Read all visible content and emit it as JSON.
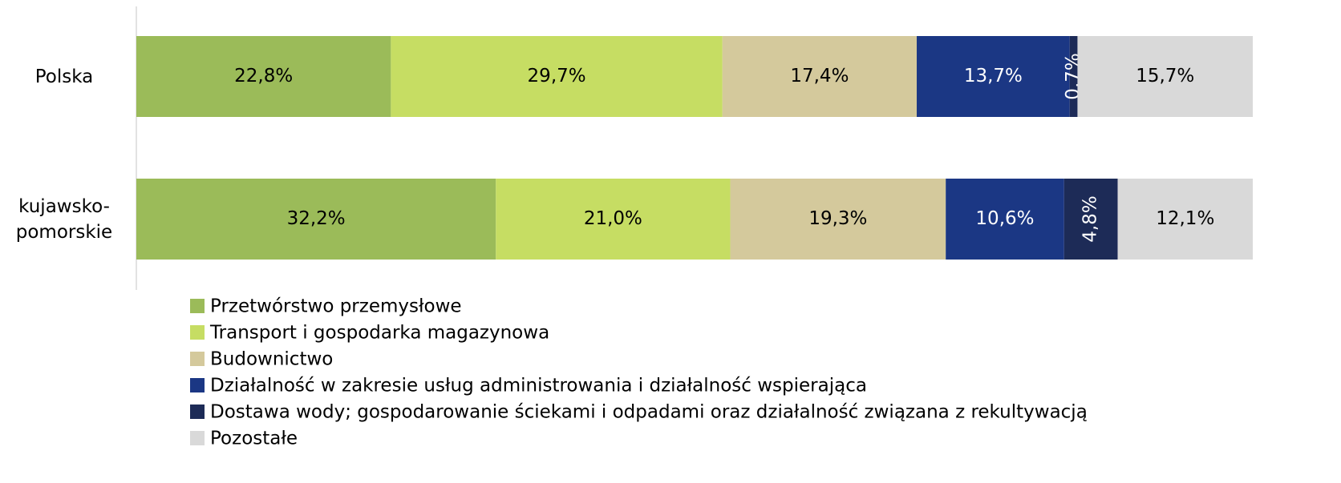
{
  "chart_data": {
    "type": "stacked_bar_horizontal",
    "categories": [
      "Polska",
      "kujawsko-pomorskie"
    ],
    "xlim": [
      0,
      100
    ],
    "series": [
      {
        "name": "Przetwórstwo przemysłowe",
        "color": "#9bbb59",
        "values": [
          22.8,
          32.2
        ],
        "value_labels": [
          "22,8%",
          "32,2%"
        ]
      },
      {
        "name": "Transport i gospodarka magazynowa",
        "color": "#c6dd63",
        "values": [
          29.7,
          21.0
        ],
        "value_labels": [
          "29,7%",
          "21,0%"
        ]
      },
      {
        "name": "Budownictwo",
        "color": "#d4c99c",
        "values": [
          17.4,
          19.3
        ],
        "value_labels": [
          "17,4%",
          "19,3%"
        ]
      },
      {
        "name": "Działalność w zakresie usług administrowania i działalność wspierająca",
        "color": "#1b3784",
        "values": [
          13.7,
          10.6
        ],
        "value_labels": [
          "13,7%",
          "10,6%"
        ]
      },
      {
        "name": "Dostawa wody; gospodarowanie ściekami i odpadami oraz działalność związana z rekultywacją",
        "color": "#1d2b57",
        "values": [
          0.7,
          4.8
        ],
        "value_labels": [
          "0,7%",
          "4,8%"
        ]
      },
      {
        "name": "Pozostałe",
        "color": "#d9d9d9",
        "values": [
          15.7,
          12.1
        ],
        "value_labels": [
          "15,7%",
          "12,1%"
        ]
      }
    ],
    "legend": "bottom-left"
  }
}
